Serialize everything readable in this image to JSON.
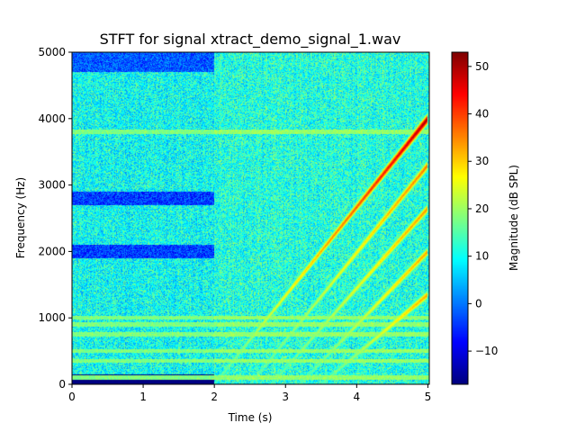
{
  "chart_data": {
    "type": "heatmap",
    "title": "STFT for signal xtract_demo_signal_1.wav",
    "xlabel": "Time (s)",
    "ylabel": "Frequency (Hz)",
    "xlim": [
      0,
      5.02
    ],
    "ylim": [
      0,
      5000
    ],
    "x_ticks": [
      "0",
      "1",
      "2",
      "3",
      "4",
      "5"
    ],
    "y_ticks": [
      "0",
      "1000",
      "2000",
      "3000",
      "4000",
      "5000"
    ],
    "colormap": "jet",
    "colorbar": {
      "label": "Magnitude (dB SPL)",
      "range": [
        -17,
        53
      ],
      "ticks": [
        "−10",
        "0",
        "10",
        "20",
        "30",
        "40",
        "50"
      ]
    },
    "background_regions": [
      {
        "t": [
          0,
          2
        ],
        "f": [
          0,
          150
        ],
        "db": -17
      },
      {
        "t": [
          0,
          2
        ],
        "f": [
          1900,
          2100
        ],
        "db": -4
      },
      {
        "t": [
          0,
          2
        ],
        "f": [
          2700,
          2900
        ],
        "db": -4
      },
      {
        "t": [
          0,
          2
        ],
        "f": [
          4700,
          5000
        ],
        "db": -2
      }
    ],
    "constant_tones_hz": [
      100,
      350,
      500,
      750,
      900,
      1000,
      3800
    ],
    "chirps": [
      {
        "t_start": 2.0,
        "f_start": 0,
        "t_end": 5.0,
        "f_end": 4000,
        "peak_db": 50
      },
      {
        "t_start": 2.5,
        "f_start": 0,
        "t_end": 5.0,
        "f_end": 3300,
        "peak_db": 36
      },
      {
        "t_start": 2.8,
        "f_start": 0,
        "t_end": 5.0,
        "f_end": 2650,
        "peak_db": 34
      },
      {
        "t_start": 3.2,
        "f_start": 0,
        "t_end": 5.0,
        "f_end": 2000,
        "peak_db": 33
      },
      {
        "t_start": 3.5,
        "f_start": 0,
        "t_end": 5.0,
        "f_end": 1350,
        "peak_db": 33
      }
    ]
  }
}
